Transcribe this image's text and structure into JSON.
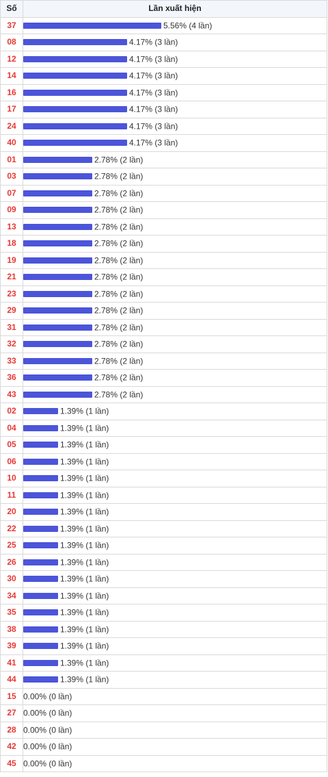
{
  "header": {
    "number_label": "Số",
    "count_label": "Lần xuất hiện"
  },
  "chart_data": {
    "type": "bar",
    "orientation": "horizontal",
    "bar_color": "#4c55d9",
    "number_color": "#e53935",
    "max_percent": 5.56,
    "rows": [
      {
        "num": "37",
        "percent": 5.56,
        "label": "5.56% (4 lần)"
      },
      {
        "num": "08",
        "percent": 4.17,
        "label": "4.17% (3 lần)"
      },
      {
        "num": "12",
        "percent": 4.17,
        "label": "4.17% (3 lần)"
      },
      {
        "num": "14",
        "percent": 4.17,
        "label": "4.17% (3 lần)"
      },
      {
        "num": "16",
        "percent": 4.17,
        "label": "4.17% (3 lần)"
      },
      {
        "num": "17",
        "percent": 4.17,
        "label": "4.17% (3 lần)"
      },
      {
        "num": "24",
        "percent": 4.17,
        "label": "4.17% (3 lần)"
      },
      {
        "num": "40",
        "percent": 4.17,
        "label": "4.17% (3 lần)"
      },
      {
        "num": "01",
        "percent": 2.78,
        "label": "2.78% (2 lần)"
      },
      {
        "num": "03",
        "percent": 2.78,
        "label": "2.78% (2 lần)"
      },
      {
        "num": "07",
        "percent": 2.78,
        "label": "2.78% (2 lần)"
      },
      {
        "num": "09",
        "percent": 2.78,
        "label": "2.78% (2 lần)"
      },
      {
        "num": "13",
        "percent": 2.78,
        "label": "2.78% (2 lần)"
      },
      {
        "num": "18",
        "percent": 2.78,
        "label": "2.78% (2 lần)"
      },
      {
        "num": "19",
        "percent": 2.78,
        "label": "2.78% (2 lần)"
      },
      {
        "num": "21",
        "percent": 2.78,
        "label": "2.78% (2 lần)"
      },
      {
        "num": "23",
        "percent": 2.78,
        "label": "2.78% (2 lần)"
      },
      {
        "num": "29",
        "percent": 2.78,
        "label": "2.78% (2 lần)"
      },
      {
        "num": "31",
        "percent": 2.78,
        "label": "2.78% (2 lần)"
      },
      {
        "num": "32",
        "percent": 2.78,
        "label": "2.78% (2 lần)"
      },
      {
        "num": "33",
        "percent": 2.78,
        "label": "2.78% (2 lần)"
      },
      {
        "num": "36",
        "percent": 2.78,
        "label": "2.78% (2 lần)"
      },
      {
        "num": "43",
        "percent": 2.78,
        "label": "2.78% (2 lần)"
      },
      {
        "num": "02",
        "percent": 1.39,
        "label": "1.39% (1 lần)"
      },
      {
        "num": "04",
        "percent": 1.39,
        "label": "1.39% (1 lần)"
      },
      {
        "num": "05",
        "percent": 1.39,
        "label": "1.39% (1 lần)"
      },
      {
        "num": "06",
        "percent": 1.39,
        "label": "1.39% (1 lần)"
      },
      {
        "num": "10",
        "percent": 1.39,
        "label": "1.39% (1 lần)"
      },
      {
        "num": "11",
        "percent": 1.39,
        "label": "1.39% (1 lần)"
      },
      {
        "num": "20",
        "percent": 1.39,
        "label": "1.39% (1 lần)"
      },
      {
        "num": "22",
        "percent": 1.39,
        "label": "1.39% (1 lần)"
      },
      {
        "num": "25",
        "percent": 1.39,
        "label": "1.39% (1 lần)"
      },
      {
        "num": "26",
        "percent": 1.39,
        "label": "1.39% (1 lần)"
      },
      {
        "num": "30",
        "percent": 1.39,
        "label": "1.39% (1 lần)"
      },
      {
        "num": "34",
        "percent": 1.39,
        "label": "1.39% (1 lần)"
      },
      {
        "num": "35",
        "percent": 1.39,
        "label": "1.39% (1 lần)"
      },
      {
        "num": "38",
        "percent": 1.39,
        "label": "1.39% (1 lần)"
      },
      {
        "num": "39",
        "percent": 1.39,
        "label": "1.39% (1 lần)"
      },
      {
        "num": "41",
        "percent": 1.39,
        "label": "1.39% (1 lần)"
      },
      {
        "num": "44",
        "percent": 1.39,
        "label": "1.39% (1 lần)"
      },
      {
        "num": "15",
        "percent": 0,
        "label": "0.00% (0 lần)"
      },
      {
        "num": "27",
        "percent": 0,
        "label": "0.00% (0 lần)"
      },
      {
        "num": "28",
        "percent": 0,
        "label": "0.00% (0 lần)"
      },
      {
        "num": "42",
        "percent": 0,
        "label": "0.00% (0 lần)"
      },
      {
        "num": "45",
        "percent": 0,
        "label": "0.00% (0 lần)"
      }
    ]
  }
}
